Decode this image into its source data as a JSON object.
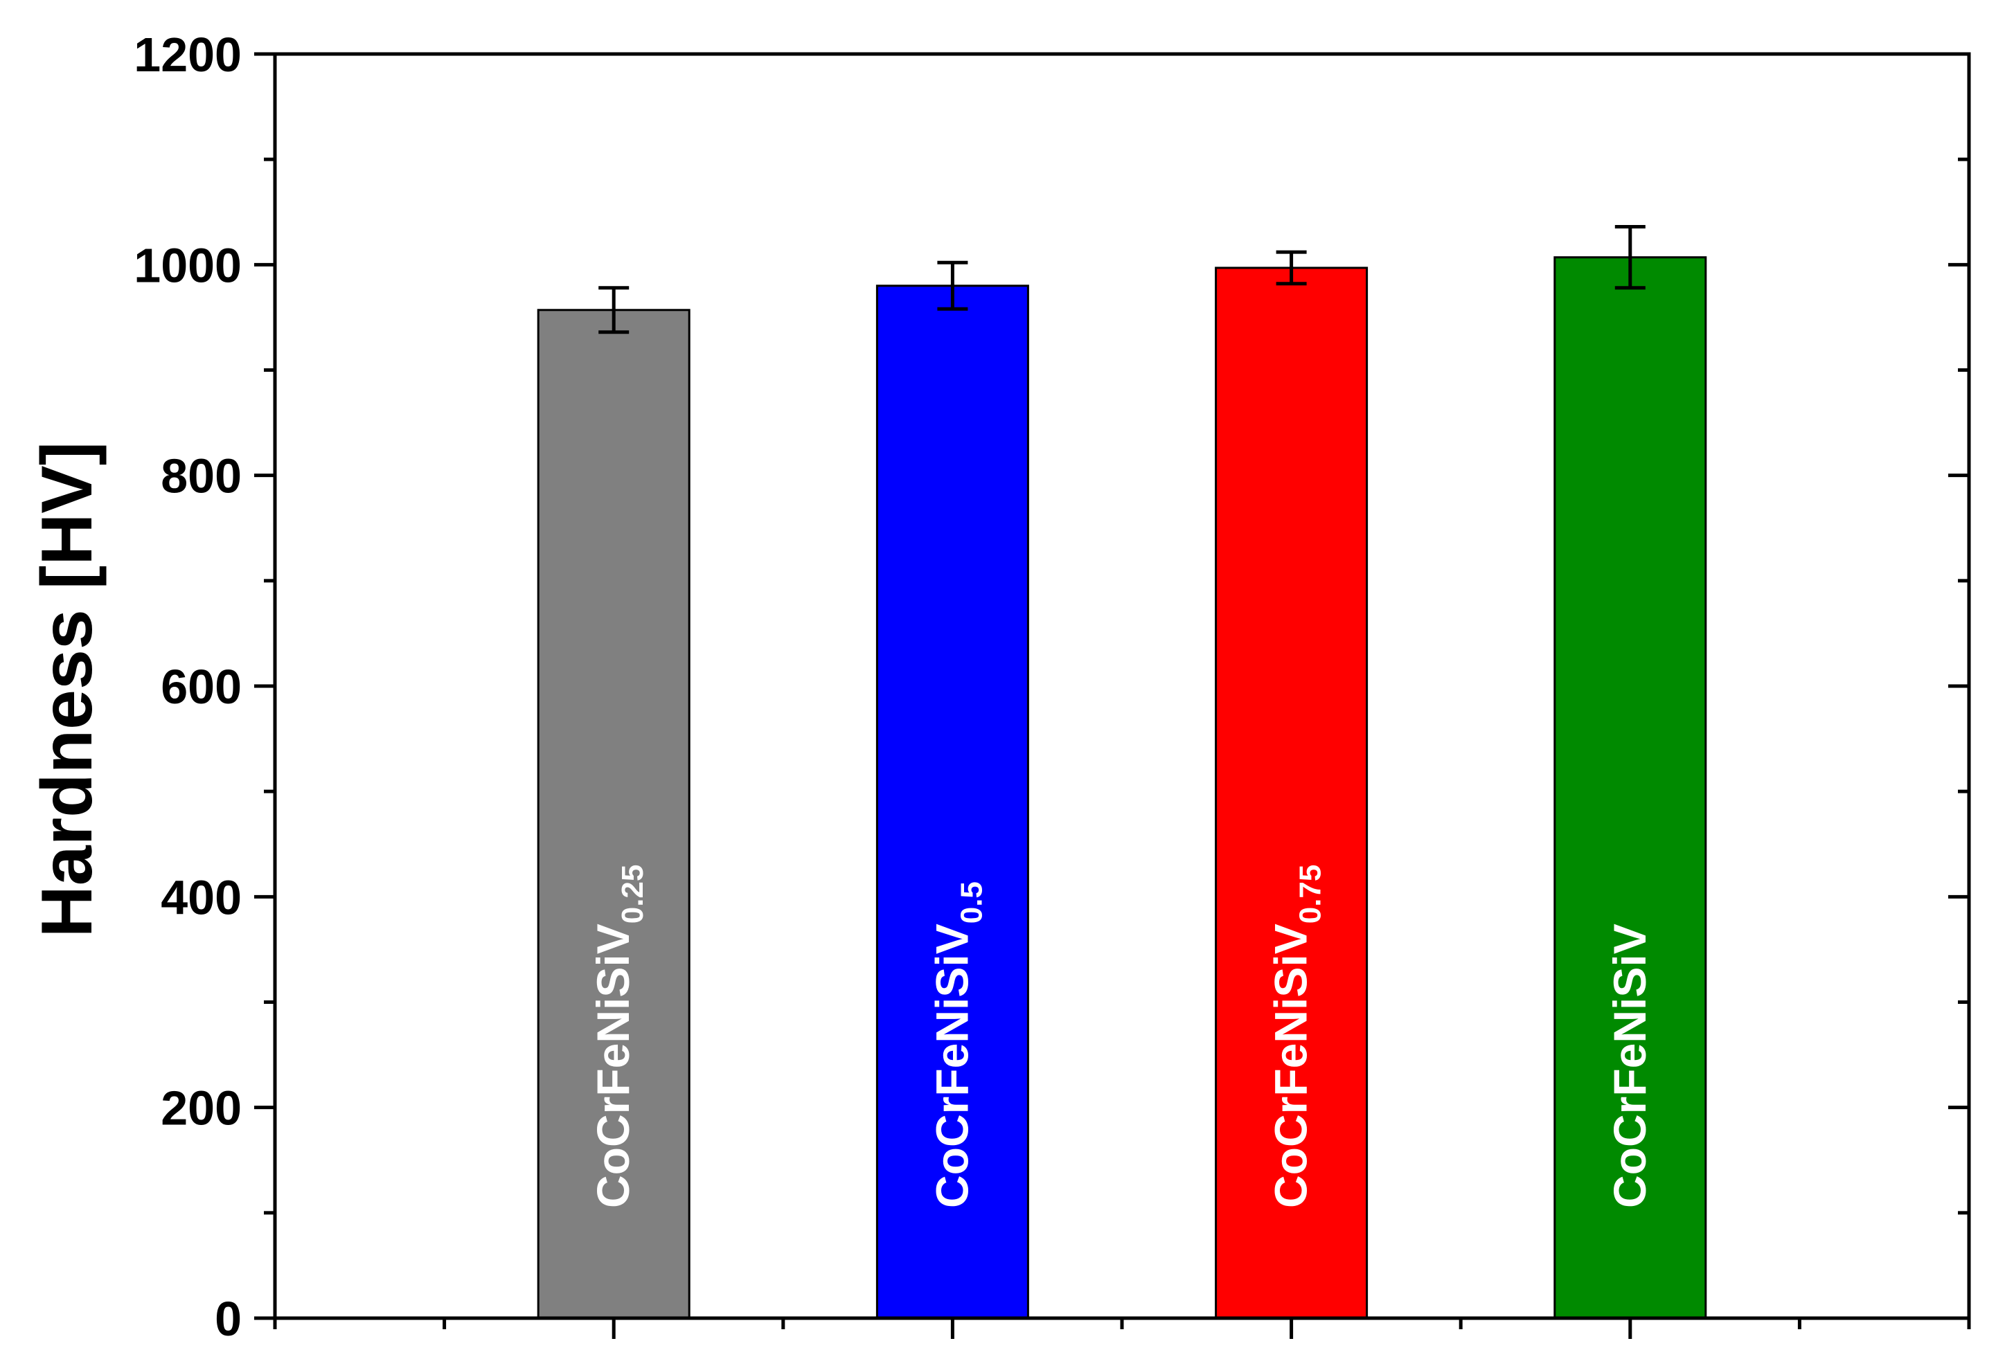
{
  "chart_data": {
    "type": "bar",
    "title": "",
    "xlabel": "",
    "ylabel": "Hardness [HV]",
    "ylim": [
      0,
      1200
    ],
    "yticks": [
      0,
      200,
      400,
      600,
      800,
      1000,
      1200
    ],
    "categories": [
      {
        "main": "CoCrFeNiSiV",
        "sub": "0.25"
      },
      {
        "main": "CoCrFeNiSiV",
        "sub": "0.5"
      },
      {
        "main": "CoCrFeNiSiV",
        "sub": "0.75"
      },
      {
        "main": "CoCrFeNiSiV",
        "sub": ""
      }
    ],
    "values": [
      957,
      980,
      997,
      1007
    ],
    "errors": [
      21,
      22,
      15,
      29
    ],
    "colors": [
      "#808080",
      "#0000ff",
      "#ff0000",
      "#008a00"
    ],
    "grid": false,
    "legend": "none",
    "bar_labels": "inside-vertical"
  }
}
